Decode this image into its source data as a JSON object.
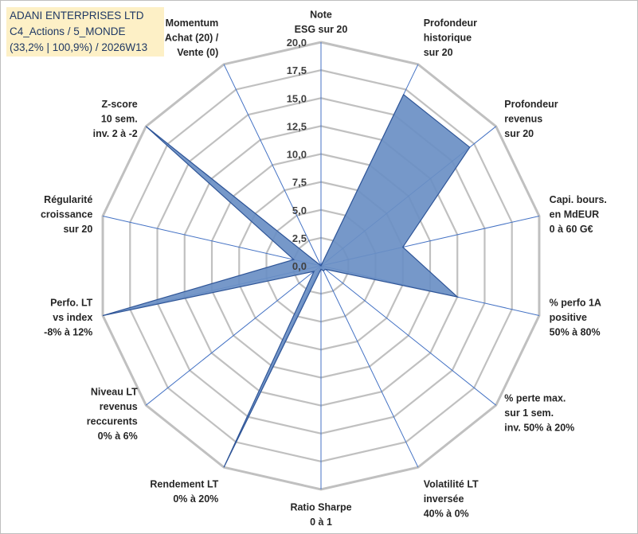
{
  "info": {
    "company": "ADANI ENTERPRISES LTD",
    "portfolio": "C4_Actions / 5_MONDE",
    "stats": "(33,2% | 100,9%) / 2026W13"
  },
  "colors": {
    "fill": "#6a8fc4",
    "stroke": "#2f5597",
    "grid": "#c0c0c0",
    "spoke": "#4472c4",
    "info_bg": "#fdf0c6"
  },
  "chart_data": {
    "type": "radar",
    "rmin": 0,
    "rmax": 20,
    "tick_step": 2.5,
    "tick_labels": [
      "0,0",
      "2,5",
      "5,0",
      "7,5",
      "10,0",
      "12,5",
      "15,0",
      "17,5",
      "20,0"
    ],
    "axes": [
      {
        "label": [
          "Note",
          "ESG sur 20"
        ],
        "value": 0
      },
      {
        "label": [
          "Profondeur",
          "historique",
          "sur 20"
        ],
        "value": 17
      },
      {
        "label": [
          "Profondeur",
          "revenus",
          "sur 20"
        ],
        "value": 17
      },
      {
        "label": [
          "Capi. bours.",
          "en MdEUR",
          "0 à 60 G€"
        ],
        "value": 7.5
      },
      {
        "label": [
          "% perfo 1A",
          "positive",
          "50% à 80%"
        ],
        "value": 12.5
      },
      {
        "label": [
          "% perte max.",
          "sur 1 sem.",
          "inv. 50% à 20%"
        ],
        "value": 0.5
      },
      {
        "label": [
          "Volatilité LT",
          "inversée",
          "40% à 0%"
        ],
        "value": 0.5
      },
      {
        "label": [
          "Ratio Sharpe",
          "0 à 1"
        ],
        "value": 0.3
      },
      {
        "label": [
          "Rendement LT",
          "0% à 20%"
        ],
        "value": 20
      },
      {
        "label": [
          "Niveau LT",
          "revenus",
          "reccurents",
          "0% à 6%"
        ],
        "value": 0.8
      },
      {
        "label": [
          "Perfo. LT",
          "vs index",
          "-8% à 12%"
        ],
        "value": 20
      },
      {
        "label": [
          "Régularité",
          "croissance",
          "sur 20"
        ],
        "value": 2.5
      },
      {
        "label": [
          "Z-score",
          "10 sem.",
          "inv. 2 à -2"
        ],
        "value": 20
      },
      {
        "label": [
          "Momentum",
          "Achat (20) /",
          "Vente (0)"
        ],
        "value": 0
      }
    ]
  }
}
